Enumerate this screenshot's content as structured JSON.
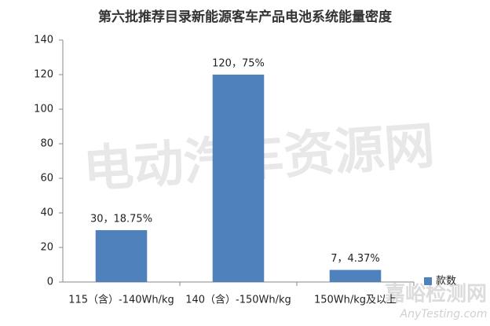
{
  "chart_data": {
    "type": "bar",
    "title": "第六批推荐目录新能源客车产品电池系统能量密度",
    "categories": [
      "115（含）-140Wh/kg",
      "140（含）-150Wh/kg",
      "150Wh/kg及以上"
    ],
    "series": [
      {
        "name": "款数",
        "color": "#4f81bd",
        "values": [
          30,
          120,
          7
        ],
        "value_labels": [
          "30，18.75%",
          "120，75%",
          "7，4.37%"
        ]
      }
    ],
    "ylim": [
      0,
      140
    ],
    "yticks": [
      0,
      20,
      40,
      60,
      80,
      100,
      120,
      140
    ],
    "grid": false,
    "legend": "right"
  },
  "watermarks": [
    "电动汽车资源网",
    "嘉峪检测网",
    "AnyTesting.com"
  ]
}
